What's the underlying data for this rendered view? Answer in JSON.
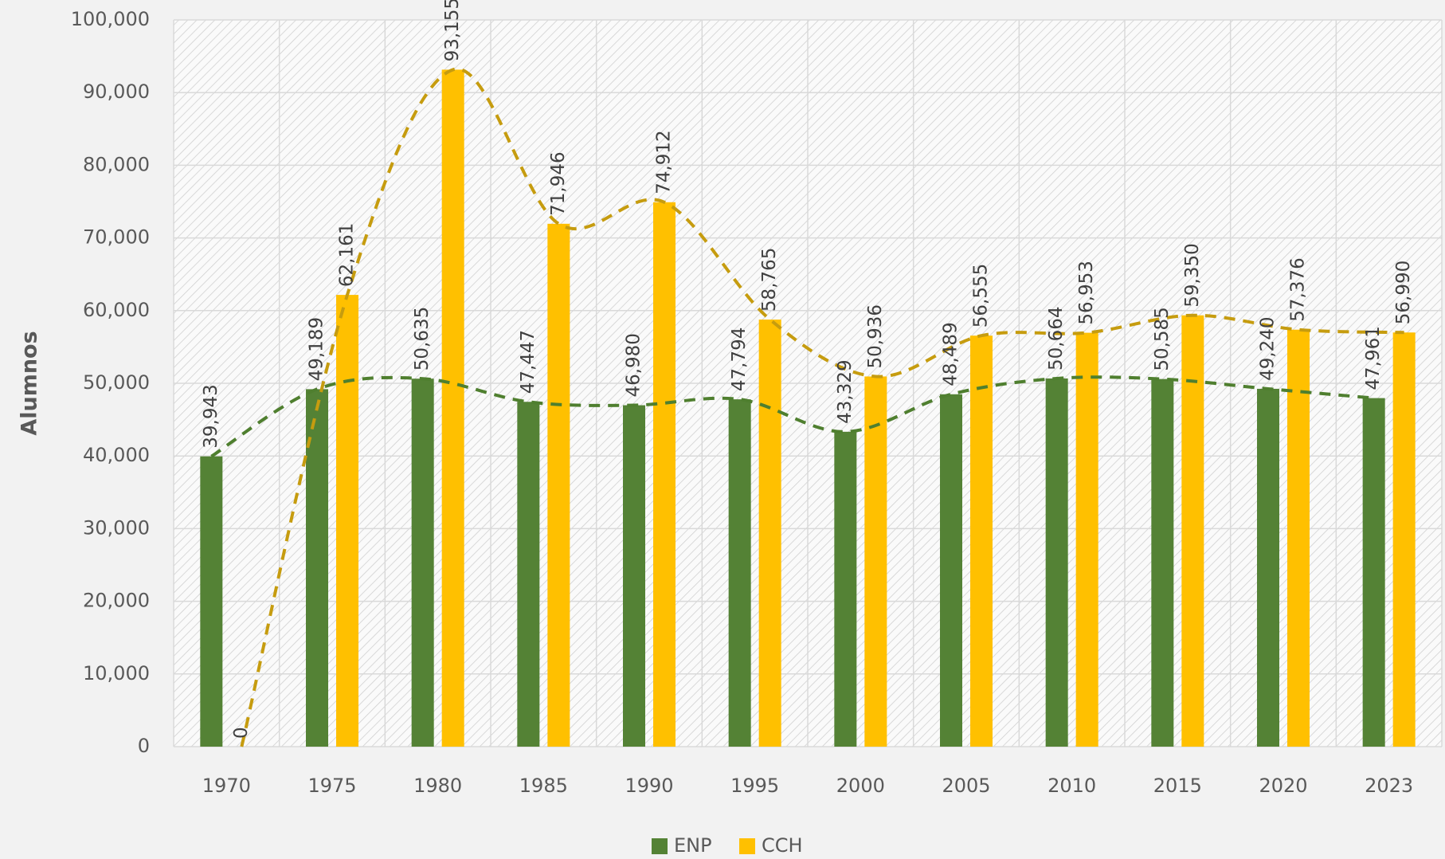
{
  "chart_data": {
    "type": "bar",
    "y_label": "Alumnos",
    "categories": [
      "1970",
      "1975",
      "1980",
      "1985",
      "1990",
      "1995",
      "2000",
      "2005",
      "2010",
      "2015",
      "2020",
      "2023"
    ],
    "series": [
      {
        "name": "ENP",
        "color": "#548235",
        "trend_color": "#4f7f2f",
        "values": [
          39943,
          49189,
          50635,
          47447,
          46980,
          47794,
          43329,
          48489,
          50664,
          50585,
          49240,
          47961
        ],
        "value_labels": [
          "39,943",
          "49,189",
          "50,635",
          "47,447",
          "46,980",
          "47,794",
          "43,329",
          "48,489",
          "50,664",
          "50,585",
          "49,240",
          "47,961"
        ]
      },
      {
        "name": "CCH",
        "color": "#ffc000",
        "trend_color": "#c69c0f",
        "values": [
          0,
          62161,
          93155,
          71946,
          74912,
          58765,
          50936,
          56555,
          56953,
          59350,
          57376,
          56990
        ],
        "value_labels": [
          "0",
          "62,161",
          "93,155",
          "71,946",
          "74,912",
          "58,765",
          "50,936",
          "56,555",
          "56,953",
          "59,350",
          "57,376",
          "56,990"
        ]
      }
    ],
    "ylim": [
      0,
      100000
    ],
    "yticks": [
      0,
      {
        "value": 10000,
        "label": "10,000"
      },
      {
        "value": 20000,
        "label": "20,000"
      },
      {
        "value": 30000,
        "label": "30,000"
      },
      {
        "value": 40000,
        "label": "40,000"
      },
      {
        "value": 50000,
        "label": "50,000"
      },
      {
        "value": 60000,
        "label": "60,000"
      },
      {
        "value": 70000,
        "label": "70,000"
      },
      {
        "value": 80000,
        "label": "80,000"
      },
      {
        "value": 90000,
        "label": "90,000"
      },
      {
        "value": 100000,
        "label": "100,000"
      }
    ],
    "grid": true,
    "legend": "bottom"
  }
}
